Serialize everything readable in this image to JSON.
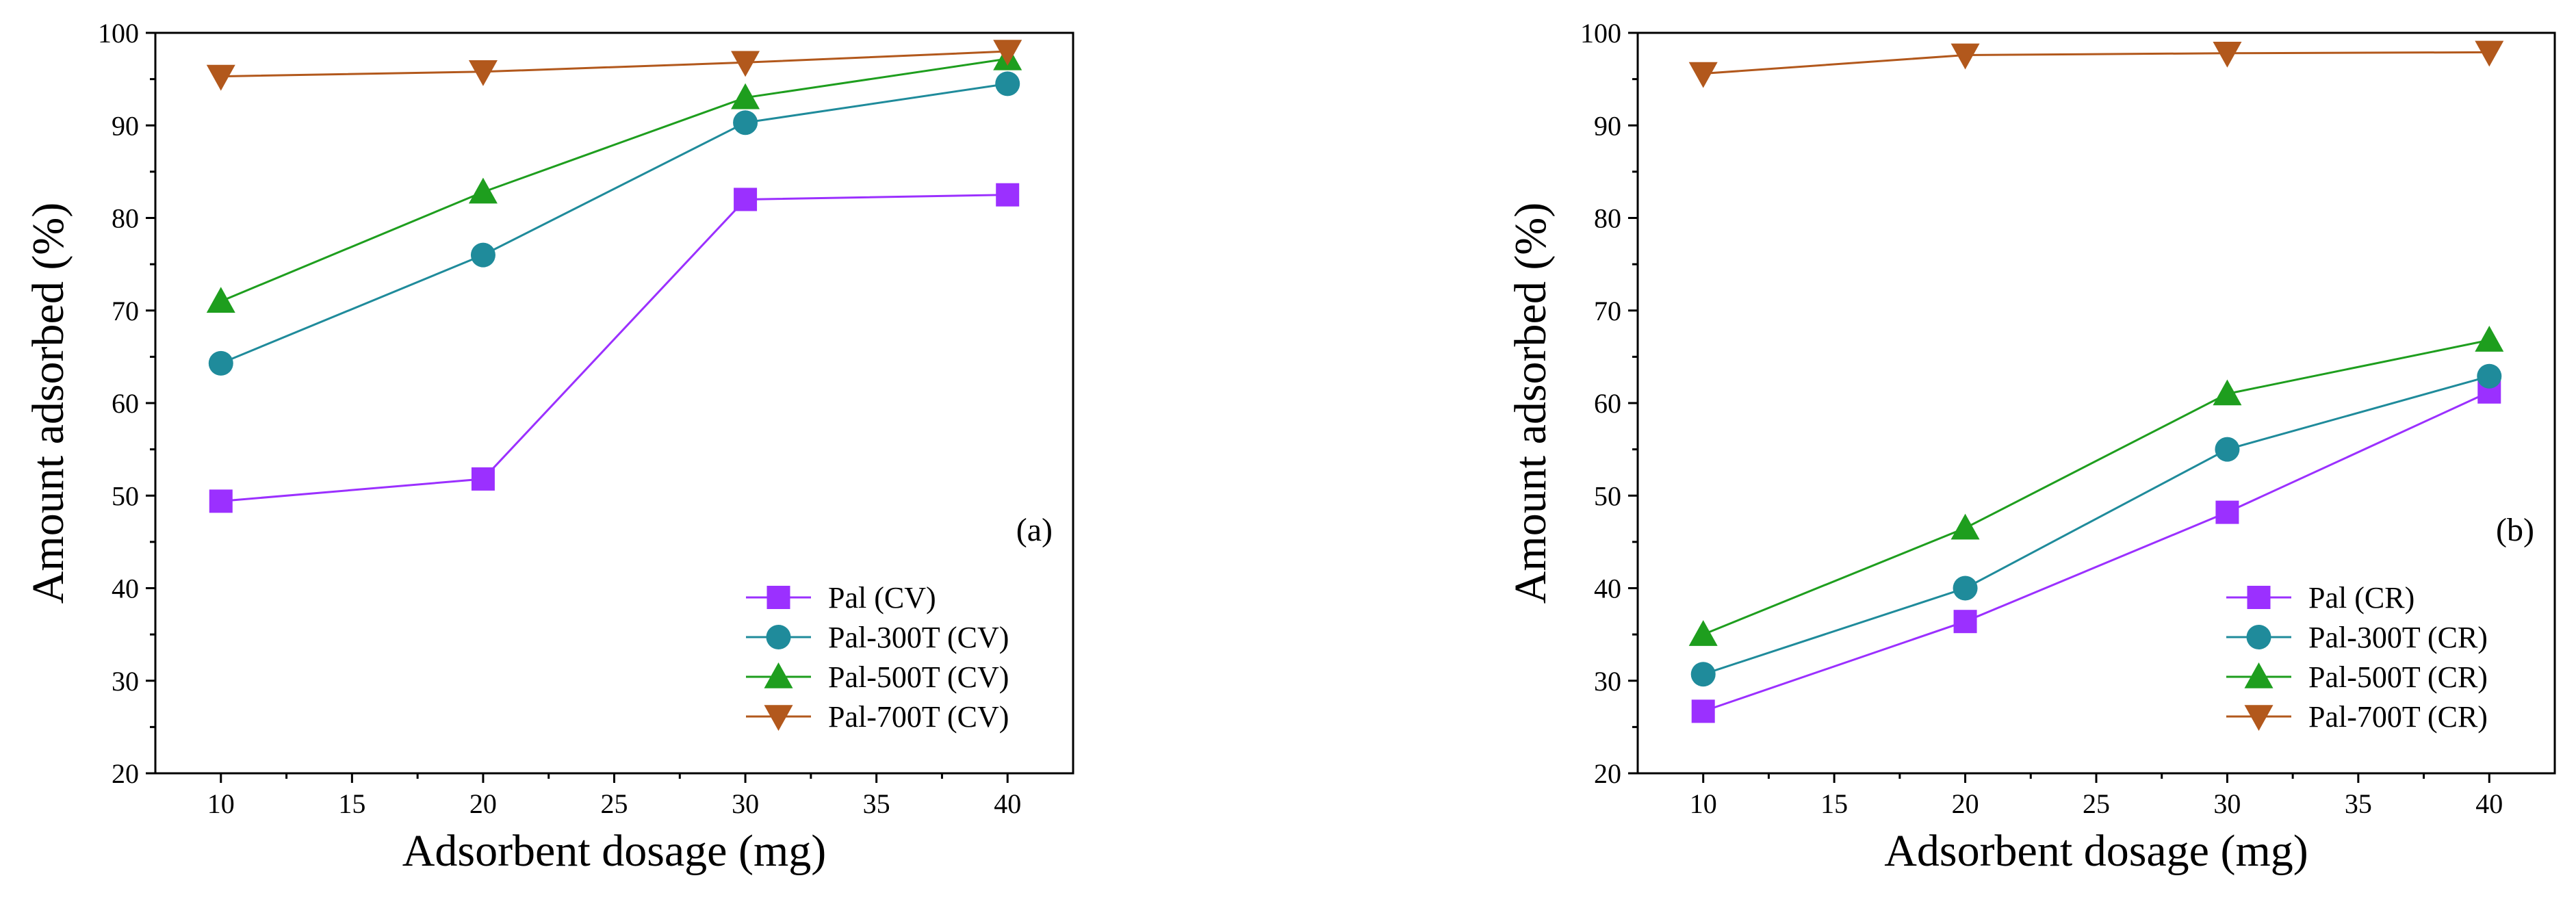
{
  "chart_data": [
    {
      "type": "line",
      "panel_label": "(a)",
      "xlabel": "Adsorbent dosage (mg)",
      "ylabel": "Amount adsorbed (%)",
      "xlim": [
        7.5,
        42.5
      ],
      "ylim": [
        20,
        100
      ],
      "xticks": [
        10,
        15,
        20,
        25,
        30,
        35,
        40
      ],
      "yticks": [
        20,
        30,
        40,
        50,
        60,
        70,
        80,
        90,
        100
      ],
      "grid": false,
      "legend_position": "bottom-right",
      "x": [
        10,
        20,
        30,
        40
      ],
      "series": [
        {
          "name": "Pal (CV)",
          "values": [
            49.4,
            51.8,
            82.0,
            82.5
          ],
          "color": "#9B30FF",
          "marker": "square"
        },
        {
          "name": "Pal-300T (CV)",
          "values": [
            64.3,
            76.0,
            90.3,
            94.5
          ],
          "color": "#1F8B9B",
          "marker": "circle"
        },
        {
          "name": "Pal-500T (CV)",
          "values": [
            71.0,
            82.8,
            93.0,
            97.2
          ],
          "color": "#1E9E1E",
          "marker": "triangle-up"
        },
        {
          "name": "Pal-700T (CV)",
          "values": [
            95.3,
            95.8,
            96.8,
            98.0
          ],
          "color": "#B2581C",
          "marker": "triangle-down"
        }
      ]
    },
    {
      "type": "line",
      "panel_label": "(b)",
      "xlabel": "Adsorbent dosage (mg)",
      "ylabel": "Amount adsorbed (%)",
      "xlim": [
        7.5,
        42.5
      ],
      "ylim": [
        20,
        100
      ],
      "xticks": [
        10,
        15,
        20,
        25,
        30,
        35,
        40
      ],
      "yticks": [
        20,
        30,
        40,
        50,
        60,
        70,
        80,
        90,
        100
      ],
      "grid": false,
      "legend_position": "bottom-right",
      "x": [
        10,
        20,
        30,
        40
      ],
      "series": [
        {
          "name": "Pal (CR)",
          "values": [
            26.7,
            36.4,
            48.2,
            61.2
          ],
          "color": "#9B30FF",
          "marker": "square"
        },
        {
          "name": "Pal-300T (CR)",
          "values": [
            30.7,
            40.0,
            55.0,
            62.9
          ],
          "color": "#1F8B9B",
          "marker": "circle"
        },
        {
          "name": "Pal-500T (CR)",
          "values": [
            35.0,
            46.5,
            61.0,
            66.8
          ],
          "color": "#1E9E1E",
          "marker": "triangle-up"
        },
        {
          "name": "Pal-700T (CR)",
          "values": [
            95.6,
            97.6,
            97.8,
            97.9
          ],
          "color": "#B2581C",
          "marker": "triangle-down"
        }
      ]
    }
  ]
}
